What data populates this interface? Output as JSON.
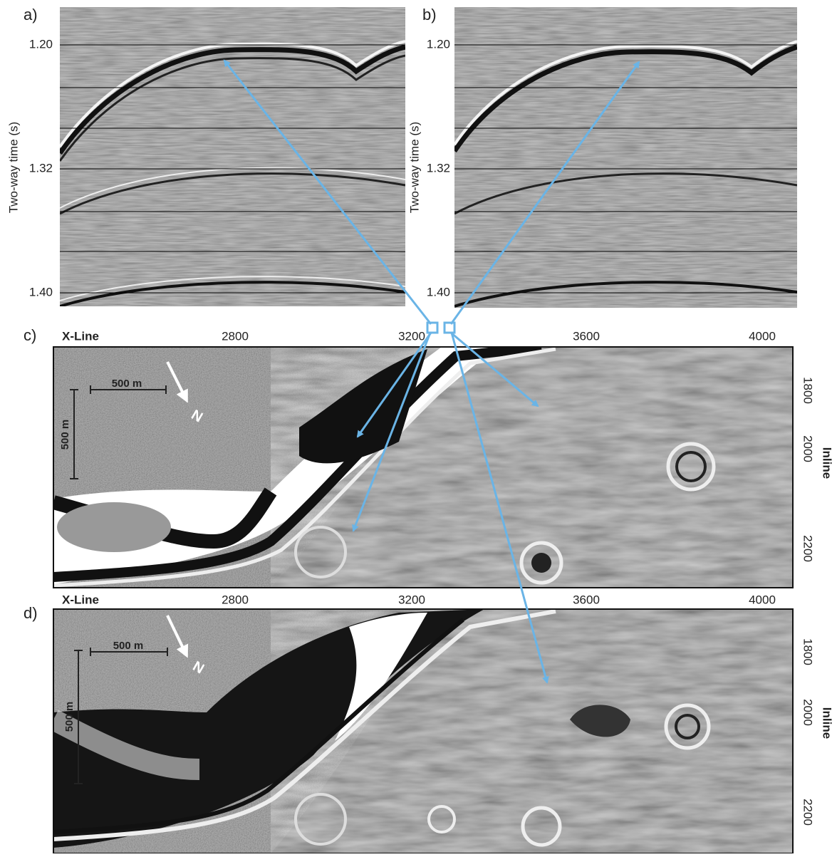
{
  "panels": [
    {
      "label": "a)",
      "y_axis": {
        "title": "Two-way time (s)",
        "ticks": [
          "1.20",
          "1.32",
          "1.40"
        ]
      }
    },
    {
      "label": "b)",
      "y_axis": {
        "title": "Two-way time (s)",
        "ticks": [
          "1.20",
          "1.32",
          "1.40"
        ]
      }
    },
    {
      "label": "c)",
      "x_axis": {
        "title": "X-Line",
        "ticks": [
          "2800",
          "3200",
          "3600",
          "4000"
        ]
      },
      "y_axis": {
        "title": "Inline",
        "ticks": [
          "1800",
          "2000",
          "2200"
        ]
      },
      "scale_bars": [
        "500 m",
        "500 m"
      ],
      "north": "N"
    },
    {
      "label": "d)",
      "x_axis": {
        "title": "X-Line",
        "ticks": [
          "2800",
          "3200",
          "3600",
          "4000"
        ]
      },
      "y_axis": {
        "title": "Inline",
        "ticks": [
          "1800",
          "2000",
          "2200"
        ]
      },
      "scale_bars": [
        "500 m",
        "500 m"
      ],
      "north": "N"
    }
  ]
}
